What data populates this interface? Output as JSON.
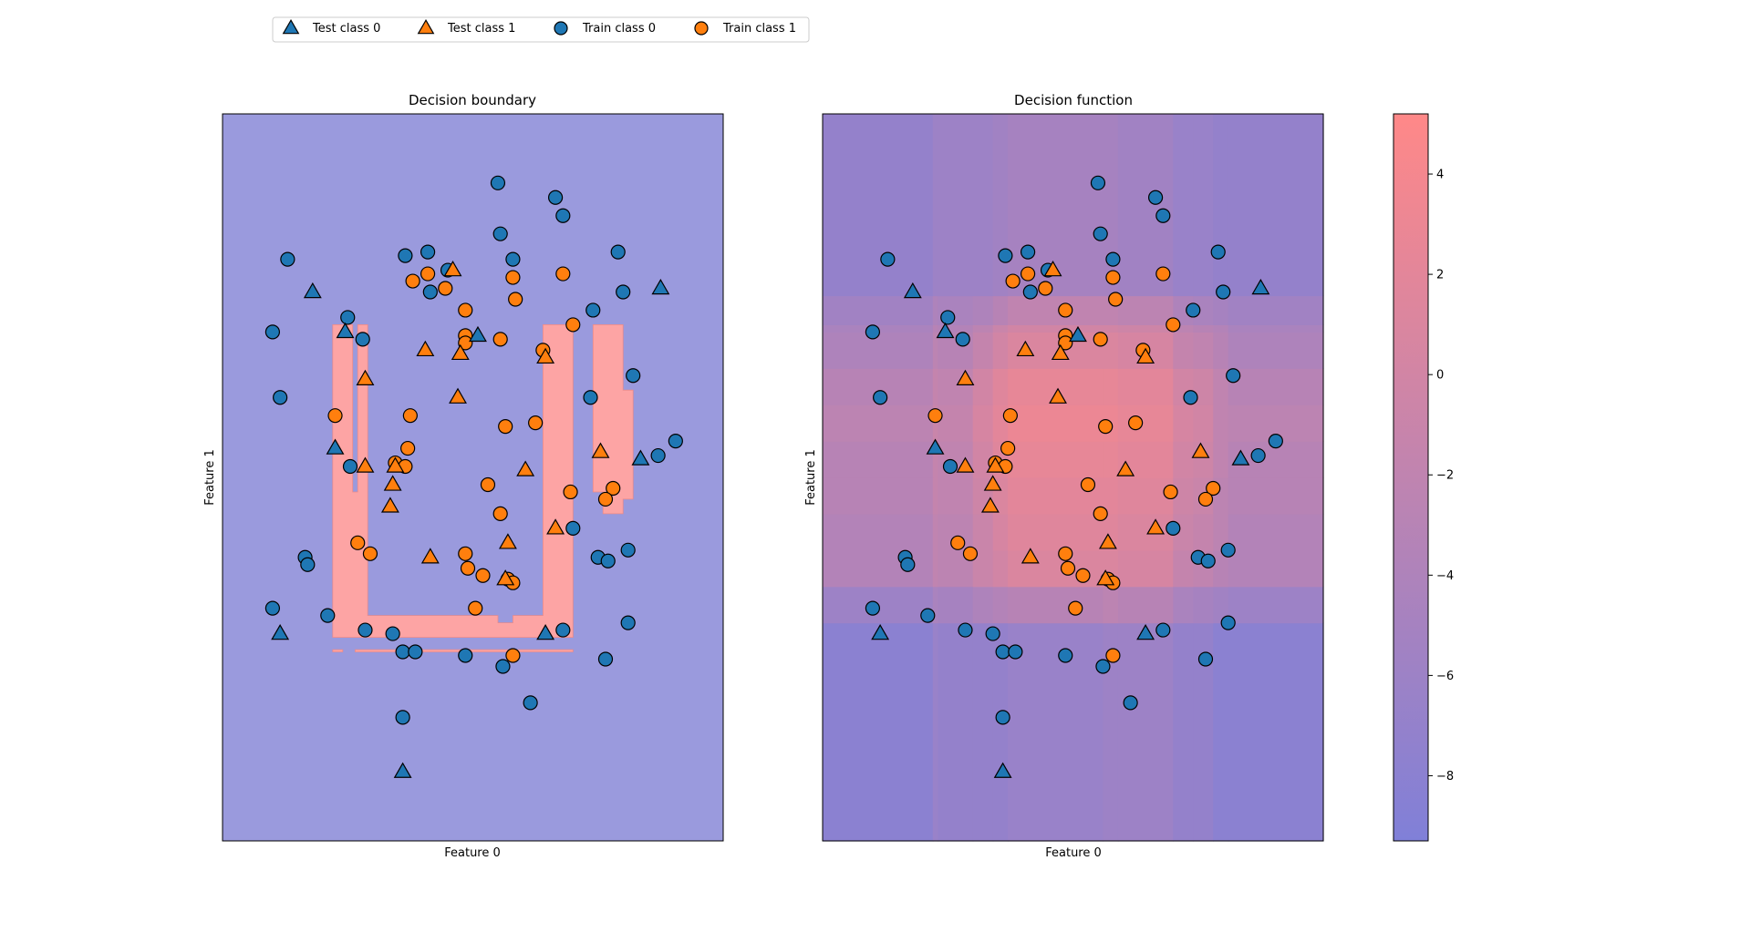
{
  "legend": {
    "location": "top-left, above plots",
    "entries": [
      {
        "label": "Test class 0",
        "marker": "triangle",
        "color": "#1f77b4"
      },
      {
        "label": "Test class 1",
        "marker": "triangle",
        "color": "#ff7f0e"
      },
      {
        "label": "Train class 0",
        "marker": "circle",
        "color": "#1f77b4"
      },
      {
        "label": "Train class 1",
        "marker": "circle",
        "color": "#ff7f0e"
      }
    ]
  },
  "colors": {
    "class0": "#1f77b4",
    "class1": "#ff7f0e",
    "region0": "#9a9add",
    "region1": "#fda4a4",
    "cmap_low": "#8080d8",
    "cmap_high": "#ff8888"
  },
  "chart_data": [
    {
      "type": "scatter",
      "title": "Decision boundary",
      "xlabel": "Feature 0",
      "ylabel": "Feature 1",
      "xlim": [
        0,
        100
      ],
      "ylim": [
        0,
        100
      ],
      "ticks_visible": false,
      "background": "decision regions (class 0 blue, class 1 red)",
      "class1_region_polygons": [
        [
          [
            22,
            28
          ],
          [
            70,
            28
          ],
          [
            70,
            71
          ],
          [
            64,
            71
          ],
          [
            64,
            31
          ],
          [
            58,
            31
          ],
          [
            58,
            30
          ],
          [
            55,
            30
          ],
          [
            55,
            31
          ],
          [
            29,
            31
          ],
          [
            29,
            71
          ],
          [
            27,
            71
          ],
          [
            27,
            48
          ],
          [
            26,
            48
          ],
          [
            26,
            71
          ],
          [
            22,
            71
          ]
        ],
        [
          [
            74,
            71
          ],
          [
            80,
            71
          ],
          [
            80,
            62
          ],
          [
            82,
            62
          ],
          [
            82,
            47
          ],
          [
            80,
            47
          ],
          [
            80,
            45
          ],
          [
            76,
            45
          ],
          [
            76,
            48
          ],
          [
            74,
            48
          ]
        ],
        [
          [
            22,
            26
          ],
          [
            24,
            26
          ],
          [
            24,
            26.3
          ],
          [
            22,
            26.3
          ]
        ],
        [
          [
            26.5,
            26
          ],
          [
            70,
            26
          ],
          [
            70,
            26.3
          ],
          [
            26.5,
            26.3
          ]
        ]
      ],
      "series": [
        {
          "name": "Test class 0",
          "marker": "triangle",
          "class": 0,
          "points": [
            [
              18,
              75.5
            ],
            [
              24.5,
              70
            ],
            [
              51,
              69.5
            ],
            [
              87.5,
              76
            ],
            [
              22.5,
              54
            ],
            [
              83.5,
              52.5
            ],
            [
              11.5,
              28.5
            ],
            [
              64.5,
              28.5
            ],
            [
              36,
              9.5
            ]
          ]
        },
        {
          "name": "Test class 1",
          "marker": "triangle",
          "class": 1,
          "points": [
            [
              46,
              78.5
            ],
            [
              40.5,
              67.5
            ],
            [
              47.5,
              67
            ],
            [
              64.5,
              66.5
            ],
            [
              28.5,
              63.5
            ],
            [
              47,
              61
            ],
            [
              28.5,
              51.5
            ],
            [
              34.5,
              51.5
            ],
            [
              60.5,
              51
            ],
            [
              34,
              49
            ],
            [
              33.5,
              46
            ],
            [
              57,
              41
            ],
            [
              66.5,
              43
            ],
            [
              41.5,
              39
            ],
            [
              56.5,
              36
            ],
            [
              75.5,
              53.5
            ]
          ]
        },
        {
          "name": "Train class 0",
          "marker": "circle",
          "class": 0,
          "points": [
            [
              55,
              90.5
            ],
            [
              66.5,
              88.5
            ],
            [
              68,
              86
            ],
            [
              55.5,
              83.5
            ],
            [
              41,
              81
            ],
            [
              13,
              80
            ],
            [
              58,
              80
            ],
            [
              79,
              81
            ],
            [
              36.5,
              80.5
            ],
            [
              45,
              78.5
            ],
            [
              41.5,
              75.5
            ],
            [
              80,
              75.5
            ],
            [
              74,
              73
            ],
            [
              25,
              72
            ],
            [
              10,
              70
            ],
            [
              28,
              69
            ],
            [
              82,
              64
            ],
            [
              11.5,
              61
            ],
            [
              73.5,
              61
            ],
            [
              25.5,
              51.5
            ],
            [
              87,
              53
            ],
            [
              90.5,
              55
            ],
            [
              70,
              43
            ],
            [
              16.5,
              39
            ],
            [
              17,
              38
            ],
            [
              75,
              39
            ],
            [
              77,
              38.5
            ],
            [
              81,
              40
            ],
            [
              10,
              32
            ],
            [
              21,
              31
            ],
            [
              28.5,
              29
            ],
            [
              34,
              28.5
            ],
            [
              68,
              29
            ],
            [
              81,
              30
            ],
            [
              36,
              26
            ],
            [
              38.5,
              26
            ],
            [
              48.5,
              25.5
            ],
            [
              56,
              24
            ],
            [
              76.5,
              25
            ],
            [
              61.5,
              19
            ],
            [
              36,
              17
            ]
          ]
        },
        {
          "name": "Train class 1",
          "marker": "circle",
          "class": 1,
          "points": [
            [
              38,
              77
            ],
            [
              41,
              78
            ],
            [
              44.5,
              76
            ],
            [
              58,
              77.5
            ],
            [
              68,
              78
            ],
            [
              58.5,
              74.5
            ],
            [
              48.5,
              73
            ],
            [
              70,
              71
            ],
            [
              48.5,
              69.5
            ],
            [
              55.5,
              69
            ],
            [
              48.5,
              68.5
            ],
            [
              64,
              67.5
            ],
            [
              22.5,
              58.5
            ],
            [
              37.5,
              58.5
            ],
            [
              56.5,
              57
            ],
            [
              62.5,
              57.5
            ],
            [
              37,
              54
            ],
            [
              34.5,
              52
            ],
            [
              36.5,
              51.5
            ],
            [
              53,
              49
            ],
            [
              69.5,
              48
            ],
            [
              78,
              48.5
            ],
            [
              76.5,
              47
            ],
            [
              55.5,
              45
            ],
            [
              27,
              41
            ],
            [
              29.5,
              39.5
            ],
            [
              48.5,
              39.5
            ],
            [
              49,
              37.5
            ],
            [
              52,
              36.5
            ],
            [
              57,
              36
            ],
            [
              58,
              35.5
            ],
            [
              50.5,
              32
            ],
            [
              58,
              25.5
            ]
          ]
        }
      ]
    },
    {
      "type": "heatmap",
      "title": "Decision function",
      "xlabel": "Feature 0",
      "ylabel": "Feature 1",
      "xlim": [
        0,
        100
      ],
      "ylim": [
        0,
        100
      ],
      "ticks_visible": false,
      "overlay": "same scatter points as Decision boundary",
      "grid_x_edges": [
        0,
        22,
        23,
        30,
        34,
        37,
        56,
        59,
        70,
        74,
        78,
        81,
        100
      ],
      "grid_y_edges": [
        0,
        30,
        35,
        40,
        45,
        50,
        55,
        60,
        65,
        70,
        71,
        75,
        100
      ],
      "values": [
        [
          -8,
          -6.5,
          -7,
          -7,
          -7,
          -6.5,
          -6,
          -6,
          -7,
          -7,
          -8,
          -8
        ],
        [
          -6,
          -4.5,
          -5,
          -4,
          -3.5,
          -3,
          -2.5,
          -3,
          -4.5,
          -5,
          -5.5,
          -6
        ],
        [
          -3.5,
          -2,
          -2.5,
          -1,
          0,
          1,
          1,
          0.5,
          -1.5,
          -2,
          -3,
          -3.5
        ],
        [
          -3.5,
          -2,
          -2.5,
          -1,
          0.5,
          1.5,
          1.5,
          1,
          -1,
          -1.5,
          -2.5,
          -3.5
        ],
        [
          -3,
          -1.5,
          -2,
          -0.5,
          1,
          2,
          2,
          1.5,
          -0.5,
          -1,
          -2.5,
          -3
        ],
        [
          -3,
          -1.5,
          -2,
          0,
          1.5,
          2.5,
          2.5,
          2,
          0,
          -0.5,
          -2,
          -3
        ],
        [
          -2.5,
          -1,
          -1.5,
          0.5,
          2,
          3,
          3,
          2.5,
          0.5,
          0,
          -2,
          -2.5
        ],
        [
          -3,
          -1.5,
          -2,
          0,
          1.5,
          2.5,
          2.5,
          2,
          0,
          -0.5,
          -2,
          -3
        ],
        [
          -4,
          -2.5,
          -3,
          -1.5,
          0,
          1,
          1,
          0.5,
          -1.5,
          -2,
          -3,
          -4
        ],
        [
          -4.5,
          -3,
          -3.5,
          -2.5,
          -1,
          0,
          0,
          -0.5,
          -2.5,
          -3,
          -3.5,
          -4.5
        ],
        [
          -5.5,
          -4,
          -4.5,
          -4,
          -3,
          -2,
          -2,
          -2.5,
          -4,
          -4.5,
          -5,
          -5.5
        ],
        [
          -7,
          -6,
          -6,
          -6,
          -5.5,
          -5,
          -5,
          -5.5,
          -6.5,
          -6.5,
          -7,
          -7
        ]
      ],
      "colorbar": {
        "vmin": -9.3,
        "vmax": 5.2,
        "ticks": [
          "4",
          "2",
          "0",
          "−2",
          "−4",
          "−6",
          "−8"
        ],
        "tick_values": [
          4,
          2,
          0,
          -2,
          -4,
          -6,
          -8
        ]
      }
    }
  ]
}
